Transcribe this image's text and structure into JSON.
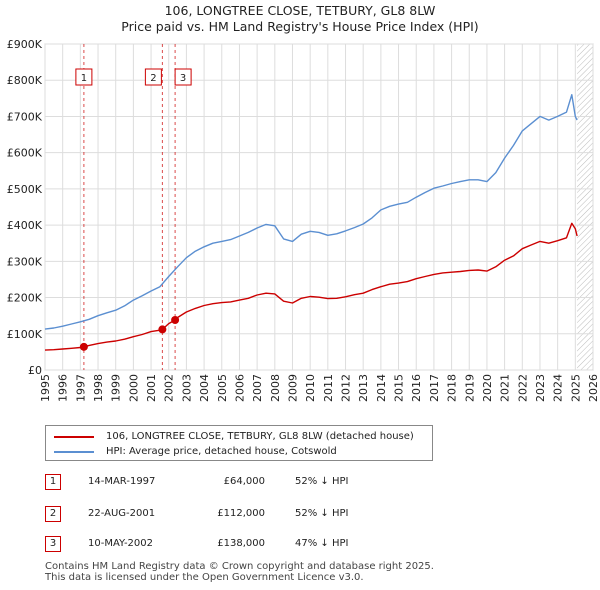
{
  "title": {
    "line1": "106, LONGTREE CLOSE, TETBURY, GL8 8LW",
    "line2": "Price paid vs. HM Land Registry's House Price Index (HPI)"
  },
  "chart_data": {
    "type": "line",
    "xlim": [
      1995,
      2026
    ],
    "ylim": [
      0,
      900000
    ],
    "y_ticks": [
      0,
      100000,
      200000,
      300000,
      400000,
      500000,
      600000,
      700000,
      800000,
      900000
    ],
    "y_tick_labels": [
      "£0",
      "£100K",
      "£200K",
      "£300K",
      "£400K",
      "£500K",
      "£600K",
      "£700K",
      "£800K",
      "£900K"
    ],
    "x_ticks": [
      1995,
      1996,
      1997,
      1998,
      1999,
      2000,
      2001,
      2002,
      2003,
      2004,
      2005,
      2006,
      2007,
      2008,
      2009,
      2010,
      2011,
      2012,
      2013,
      2014,
      2015,
      2016,
      2017,
      2018,
      2019,
      2020,
      2021,
      2022,
      2023,
      2024,
      2025,
      2026
    ],
    "x_tick_labels": [
      "1995",
      "1996",
      "1997",
      "1998",
      "1999",
      "2000",
      "2001",
      "2002",
      "2003",
      "2004",
      "2005",
      "2006",
      "2007",
      "2008",
      "2009",
      "2010",
      "2011",
      "2012",
      "2013",
      "2014",
      "2015",
      "2016",
      "2017",
      "2018",
      "2019",
      "2020",
      "2021",
      "2022",
      "2023",
      "2024",
      "2025",
      "2026"
    ],
    "grid": true,
    "series": [
      {
        "name": "106, LONGTREE CLOSE, TETBURY, GL8 8LW (detached house)",
        "color": "#cc0000",
        "x": [
          1995.0,
          1995.5,
          1996.0,
          1996.5,
          1997.0,
          1997.2,
          1997.5,
          1998.0,
          1998.5,
          1999.0,
          1999.5,
          2000.0,
          2000.5,
          2001.0,
          2001.5,
          2001.64,
          2002.0,
          2002.36,
          2002.5,
          2003.0,
          2003.5,
          2004.0,
          2004.5,
          2005.0,
          2005.5,
          2006.0,
          2006.5,
          2007.0,
          2007.5,
          2008.0,
          2008.5,
          2009.0,
          2009.5,
          2010.0,
          2010.5,
          2011.0,
          2011.5,
          2012.0,
          2012.5,
          2013.0,
          2013.5,
          2014.0,
          2014.5,
          2015.0,
          2015.5,
          2016.0,
          2016.5,
          2017.0,
          2017.5,
          2018.0,
          2018.5,
          2019.0,
          2019.5,
          2020.0,
          2020.5,
          2021.0,
          2021.5,
          2022.0,
          2022.5,
          2023.0,
          2023.5,
          2024.0,
          2024.5,
          2024.8,
          2025.0,
          2025.1
        ],
        "values": [
          55000,
          56000,
          58000,
          60000,
          62000,
          64000,
          68000,
          73000,
          77000,
          80000,
          85000,
          92000,
          98000,
          106000,
          110000,
          112000,
          128000,
          138000,
          145000,
          160000,
          170000,
          178000,
          183000,
          186000,
          188000,
          193000,
          198000,
          207000,
          212000,
          210000,
          190000,
          185000,
          198000,
          203000,
          201000,
          197000,
          198000,
          202000,
          208000,
          212000,
          222000,
          230000,
          237000,
          240000,
          244000,
          252000,
          258000,
          264000,
          268000,
          270000,
          272000,
          275000,
          276000,
          273000,
          285000,
          303000,
          315000,
          335000,
          345000,
          355000,
          350000,
          357000,
          365000,
          405000,
          390000,
          370000
        ]
      },
      {
        "name": "HPI: Average price, detached house, Cotswold",
        "color": "#5b8fd1",
        "x": [
          1995.0,
          1995.5,
          1996.0,
          1996.5,
          1997.0,
          1997.5,
          1998.0,
          1998.5,
          1999.0,
          1999.5,
          2000.0,
          2000.5,
          2001.0,
          2001.5,
          2002.0,
          2002.5,
          2003.0,
          2003.5,
          2004.0,
          2004.5,
          2005.0,
          2005.5,
          2006.0,
          2006.5,
          2007.0,
          2007.5,
          2008.0,
          2008.5,
          2009.0,
          2009.5,
          2010.0,
          2010.5,
          2011.0,
          2011.5,
          2012.0,
          2012.5,
          2013.0,
          2013.5,
          2014.0,
          2014.5,
          2015.0,
          2015.5,
          2016.0,
          2016.5,
          2017.0,
          2017.5,
          2018.0,
          2018.5,
          2019.0,
          2019.5,
          2020.0,
          2020.5,
          2021.0,
          2021.5,
          2022.0,
          2022.5,
          2023.0,
          2023.5,
          2024.0,
          2024.5,
          2024.8,
          2025.0,
          2025.1
        ],
        "values": [
          113000,
          116000,
          121000,
          127000,
          133000,
          140000,
          150000,
          158000,
          165000,
          177000,
          193000,
          205000,
          218000,
          230000,
          258000,
          285000,
          310000,
          328000,
          340000,
          350000,
          355000,
          360000,
          370000,
          380000,
          392000,
          402000,
          398000,
          362000,
          355000,
          375000,
          383000,
          380000,
          372000,
          376000,
          384000,
          393000,
          403000,
          420000,
          442000,
          452000,
          458000,
          463000,
          477000,
          490000,
          502000,
          508000,
          515000,
          520000,
          525000,
          525000,
          520000,
          545000,
          585000,
          620000,
          660000,
          680000,
          700000,
          690000,
          700000,
          712000,
          760000,
          700000,
          690000
        ]
      }
    ],
    "sales": [
      {
        "label": "1",
        "x": 1997.2,
        "price": 64000
      },
      {
        "label": "2",
        "x": 2001.64,
        "price": 112000
      },
      {
        "label": "3",
        "x": 2002.36,
        "price": 138000
      }
    ],
    "forecast_start": 2025.1
  },
  "legend": {
    "items": [
      {
        "label": "106, LONGTREE CLOSE, TETBURY, GL8 8LW (detached house)",
        "color": "#cc0000"
      },
      {
        "label": "HPI: Average price, detached house, Cotswold",
        "color": "#5b8fd1"
      }
    ]
  },
  "transactions": [
    {
      "num": "1",
      "date": "14-MAR-1997",
      "price": "£64,000",
      "hpi": "52% ↓ HPI"
    },
    {
      "num": "2",
      "date": "22-AUG-2001",
      "price": "£112,000",
      "hpi": "52% ↓ HPI"
    },
    {
      "num": "3",
      "date": "10-MAY-2002",
      "price": "£138,000",
      "hpi": "47% ↓ HPI"
    }
  ],
  "footer": {
    "line1": "Contains HM Land Registry data © Crown copyright and database right 2025.",
    "line2": "This data is licensed under the Open Government Licence v3.0."
  }
}
